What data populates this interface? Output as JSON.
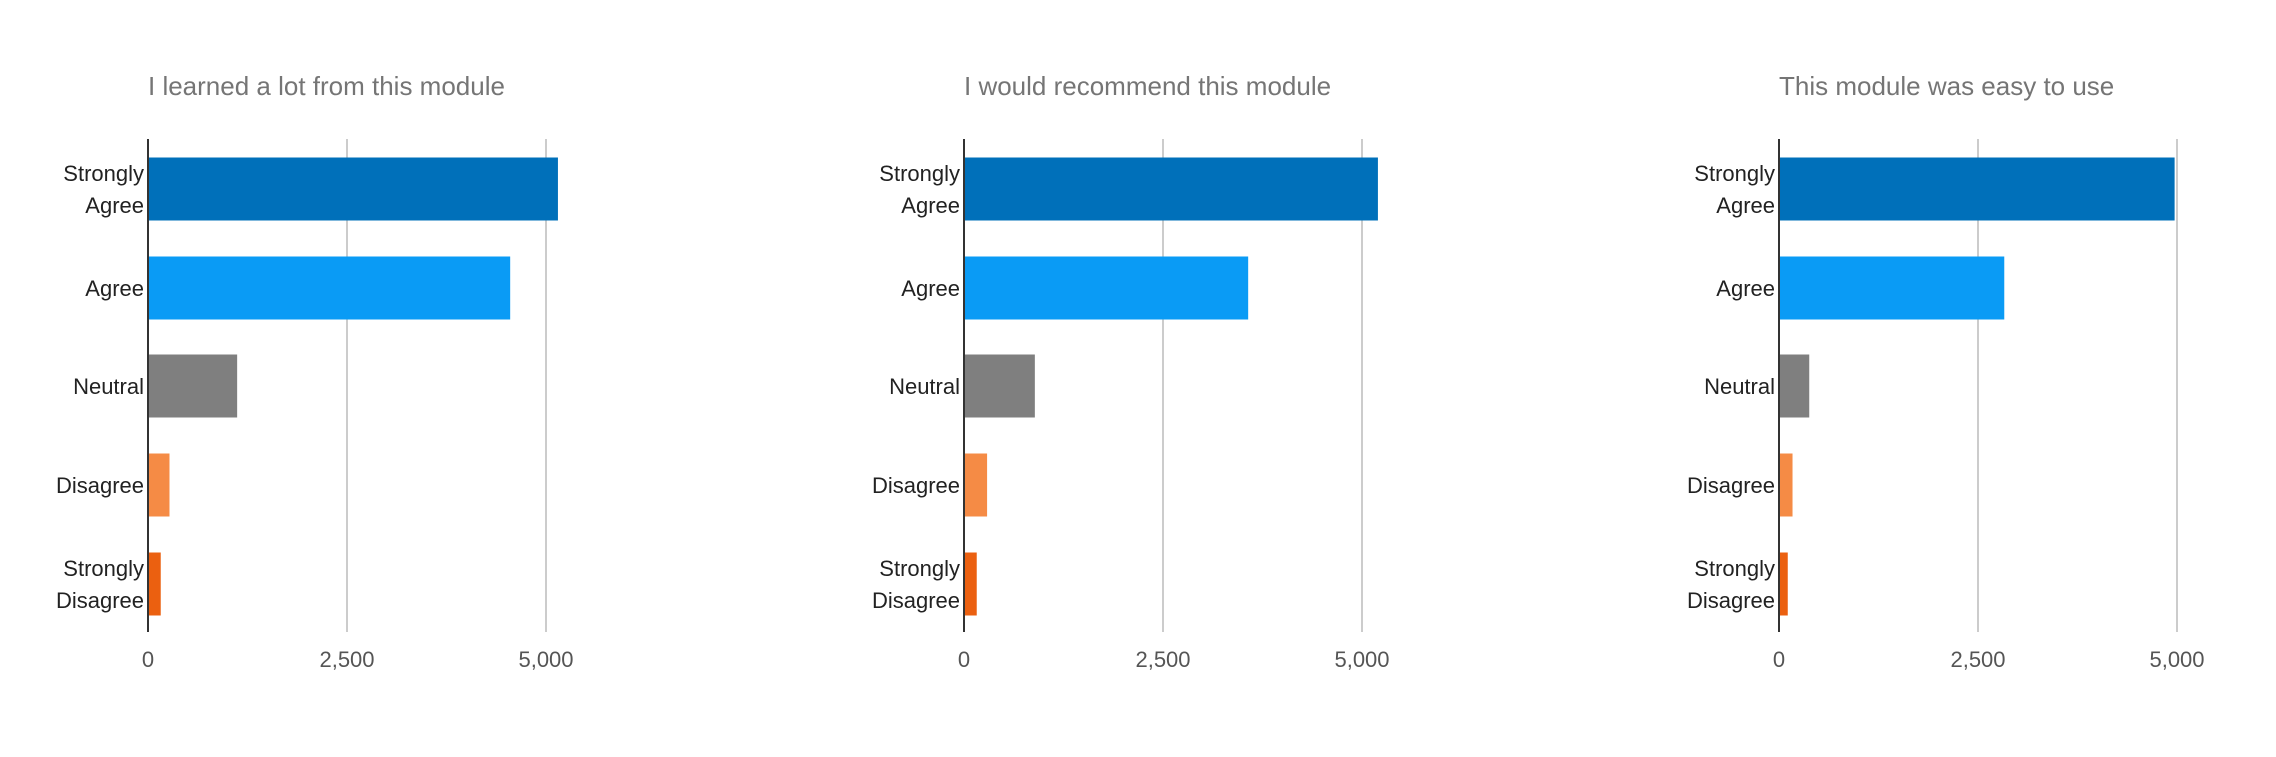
{
  "chart_data": [
    {
      "type": "bar",
      "orientation": "horizontal",
      "title": "I learned a lot from this module",
      "categories": [
        [
          "Strongly",
          "Agree"
        ],
        [
          "Agree"
        ],
        [
          "Neutral"
        ],
        [
          "Disagree"
        ],
        [
          "Strongly",
          "Disagree"
        ]
      ],
      "values": [
        5150,
        4550,
        1120,
        270,
        160
      ],
      "colors": [
        "#0070BA",
        "#0A9BF5",
        "#7F7F7F",
        "#F58B45",
        "#EB6010"
      ],
      "xticks": [
        "0",
        "2,500",
        "5,000"
      ],
      "xtick_values": [
        0,
        2500,
        5000
      ],
      "xlim": [
        0,
        5000
      ],
      "grid": true,
      "legend": false
    },
    {
      "type": "bar",
      "orientation": "horizontal",
      "title": "I would recommend this module",
      "categories": [
        [
          "Strongly",
          "Agree"
        ],
        [
          "Agree"
        ],
        [
          "Neutral"
        ],
        [
          "Disagree"
        ],
        [
          "Strongly",
          "Disagree"
        ]
      ],
      "values": [
        5200,
        3570,
        890,
        290,
        160
      ],
      "colors": [
        "#0070BA",
        "#0A9BF5",
        "#7F7F7F",
        "#F58B45",
        "#EB6010"
      ],
      "xticks": [
        "0",
        "2,500",
        "5,000"
      ],
      "xtick_values": [
        0,
        2500,
        5000
      ],
      "xlim": [
        0,
        5000
      ],
      "grid": true,
      "legend": false
    },
    {
      "type": "bar",
      "orientation": "horizontal",
      "title": "This module was easy to use",
      "categories": [
        [
          "Strongly",
          "Agree"
        ],
        [
          "Agree"
        ],
        [
          "Neutral"
        ],
        [
          "Disagree"
        ],
        [
          "Strongly",
          "Disagree"
        ]
      ],
      "values": [
        4970,
        2830,
        380,
        170,
        110
      ],
      "colors": [
        "#0070BA",
        "#0A9BF5",
        "#7F7F7F",
        "#F58B45",
        "#EB6010"
      ],
      "xticks": [
        "0",
        "2,500",
        "5,000"
      ],
      "xtick_values": [
        0,
        2500,
        5000
      ],
      "xlim": [
        0,
        5000
      ],
      "grid": true,
      "legend": false
    }
  ]
}
